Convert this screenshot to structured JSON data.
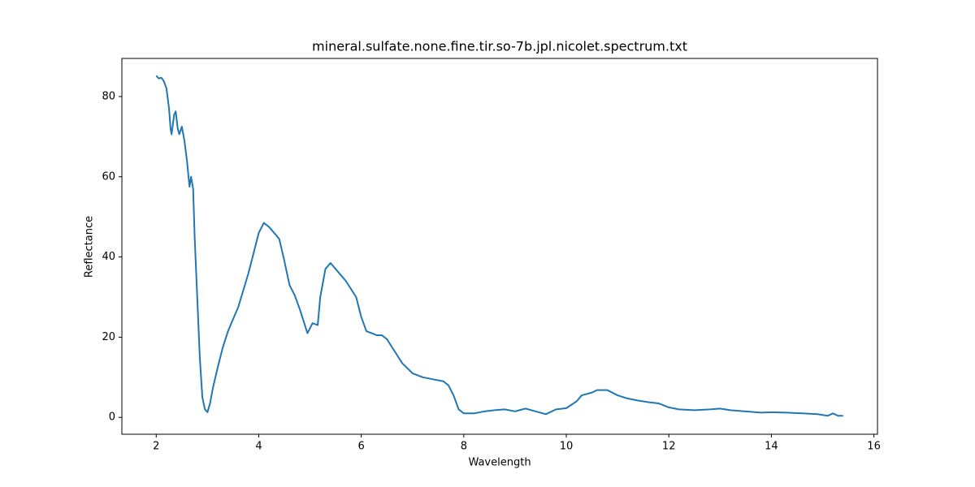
{
  "chart_data": {
    "type": "line",
    "title": "mineral.sulfate.none.fine.tir.so-7b.jpl.nicolet.spectrum.txt",
    "x_label": "Wavelength",
    "y_label": "Reflectance",
    "color": "#1f77b4",
    "x": [
      2.0,
      2.05,
      2.1,
      2.15,
      2.2,
      2.25,
      2.28,
      2.3,
      2.35,
      2.38,
      2.42,
      2.45,
      2.5,
      2.55,
      2.6,
      2.63,
      2.65,
      2.68,
      2.72,
      2.75,
      2.8,
      2.85,
      2.9,
      2.95,
      3.0,
      3.05,
      3.1,
      3.2,
      3.3,
      3.4,
      3.6,
      3.8,
      4.0,
      4.1,
      4.2,
      4.3,
      4.4,
      4.5,
      4.6,
      4.7,
      4.8,
      4.9,
      4.95,
      5.05,
      5.15,
      5.2,
      5.3,
      5.4,
      5.5,
      5.6,
      5.7,
      5.8,
      5.9,
      6.0,
      6.1,
      6.2,
      6.3,
      6.4,
      6.5,
      6.6,
      6.8,
      7.0,
      7.2,
      7.4,
      7.6,
      7.7,
      7.8,
      7.9,
      8.0,
      8.2,
      8.4,
      8.6,
      8.8,
      9.0,
      9.2,
      9.4,
      9.6,
      9.8,
      10.0,
      10.2,
      10.3,
      10.5,
      10.6,
      10.8,
      11.0,
      11.2,
      11.4,
      11.6,
      11.8,
      12.0,
      12.2,
      12.5,
      12.8,
      13.0,
      13.2,
      13.5,
      13.8,
      14.0,
      14.3,
      14.6,
      14.9,
      15.1,
      15.2,
      15.3,
      15.4
    ],
    "values": [
      85.2,
      84.5,
      84.7,
      83.8,
      82,
      77,
      72,
      70.6,
      75.5,
      76.3,
      72,
      70.6,
      72.5,
      69,
      64,
      60,
      57.5,
      60,
      57,
      45,
      30,
      15,
      5,
      2,
      1.3,
      3.5,
      7,
      12.5,
      17.5,
      21.5,
      27.5,
      36,
      46,
      48.5,
      47.5,
      46,
      44.5,
      39,
      33,
      30.5,
      27,
      23,
      21,
      23.5,
      23,
      30,
      37,
      38.5,
      37,
      35.5,
      34,
      32,
      30,
      25,
      21.5,
      21,
      20.5,
      20.5,
      19.5,
      17.5,
      13.5,
      11,
      10,
      9.5,
      9,
      8,
      5.5,
      2,
      1,
      1,
      1.5,
      1.8,
      2,
      1.5,
      2.2,
      1.5,
      0.8,
      2,
      2.3,
      4,
      5.5,
      6.2,
      6.8,
      6.8,
      5.5,
      4.7,
      4.2,
      3.8,
      3.5,
      2.5,
      2,
      1.8,
      2,
      2.2,
      1.8,
      1.5,
      1.2,
      1.3,
      1.2,
      1,
      0.8,
      0.4,
      1,
      0.4,
      0.4
    ],
    "xlim": [
      1.33,
      16.07
    ],
    "ylim": [
      -4.2,
      89.5
    ],
    "xticks": [
      2,
      4,
      6,
      8,
      10,
      12,
      14,
      16
    ],
    "yticks": [
      0,
      20,
      40,
      60,
      80
    ],
    "grid": false
  }
}
